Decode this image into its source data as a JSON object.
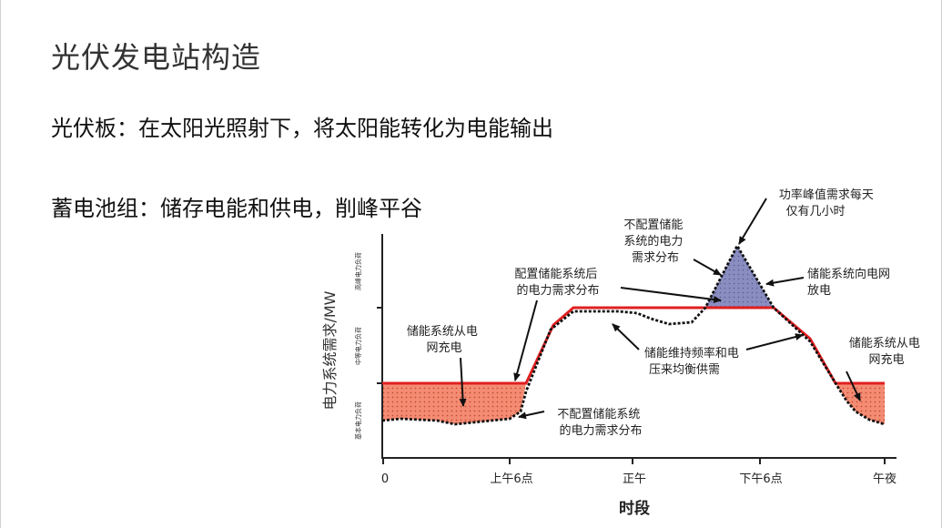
{
  "title": "光伏发电站构造",
  "bullets": [
    "光伏板：在太阳光照射下，将太阳能转化为电能输出",
    "蓄电池组：储存电能和供电，削峰平谷"
  ],
  "diagram": {
    "y_axis_label": "电力系统需求/MW",
    "x_axis_label": "时段",
    "x_ticks": [
      "0",
      "上午6点",
      "正午",
      "下午6点",
      "午夜"
    ],
    "y_bands": [
      "高峰电力负荷",
      "中等电力负荷",
      "基本电力负荷"
    ],
    "callouts": {
      "charge_left": [
        "储能系统从电",
        "网充电"
      ],
      "charge_right": [
        "储能系统从电",
        "网充电"
      ],
      "with_storage": [
        "配置储能系统后",
        "的电力需求分布"
      ],
      "without_storage_top": [
        "不配置储能",
        "系统的电力",
        "需求分布"
      ],
      "without_storage_bottom": [
        "不配置储能系统",
        "的电力需求分布"
      ],
      "peak_short": [
        "功率峰值需求每天",
        "仅有几小时"
      ],
      "discharge": [
        "储能系统向电网",
        "放电"
      ],
      "regulation": [
        "储能维持频率和电",
        "压来均衡供需"
      ]
    },
    "colors": {
      "storage_curve": "#e02020",
      "charge_fill": "#f0826a",
      "discharge_fill": "#8c8fbf",
      "baseline_curve": "#111111"
    }
  }
}
